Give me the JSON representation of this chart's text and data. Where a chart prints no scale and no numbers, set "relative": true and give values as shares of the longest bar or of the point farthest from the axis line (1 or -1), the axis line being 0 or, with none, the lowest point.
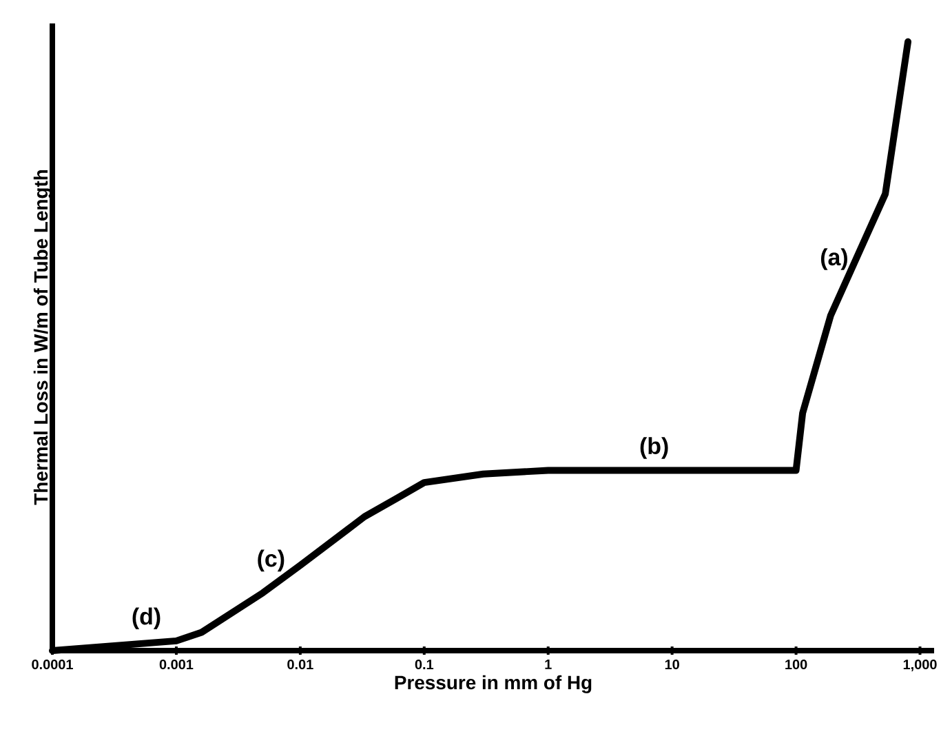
{
  "chart_data": {
    "type": "line",
    "relative": true,
    "log": "x",
    "tick_labels": "x",
    "xlabel": "Pressure in mm of Hg",
    "ylabel": "Thermal Loss in W/m of Tube Length",
    "xlim": [
      0.0001,
      1300
    ],
    "xticks": [
      0.0001,
      0.001,
      0.01,
      0.1,
      1,
      10,
      100,
      {
        "value": 1000,
        "label": "1,000"
      }
    ],
    "x": [
      0.0001,
      0.001,
      0.0016,
      0.005,
      0.01,
      0.033,
      0.06,
      0.1,
      0.3,
      1,
      100,
      113,
      190,
      525,
      800
    ],
    "series": [
      {
        "color": "#000000",
        "values": [
          0,
          0.016,
          0.03,
          0.095,
          0.14,
          0.22,
          0.25,
          0.276,
          0.29,
          0.296,
          0.296,
          0.39,
          0.55,
          0.75,
          1
        ]
      }
    ],
    "annotations": [
      {
        "text": "(a)",
        "x": 280,
        "y": 0.62
      },
      {
        "text": "(b)",
        "x": 10,
        "y": 0.31
      },
      {
        "text": "(c)",
        "x": 0.008,
        "y": 0.125
      },
      {
        "text": "(d)",
        "x": 0.0008,
        "y": 0.03
      }
    ]
  }
}
